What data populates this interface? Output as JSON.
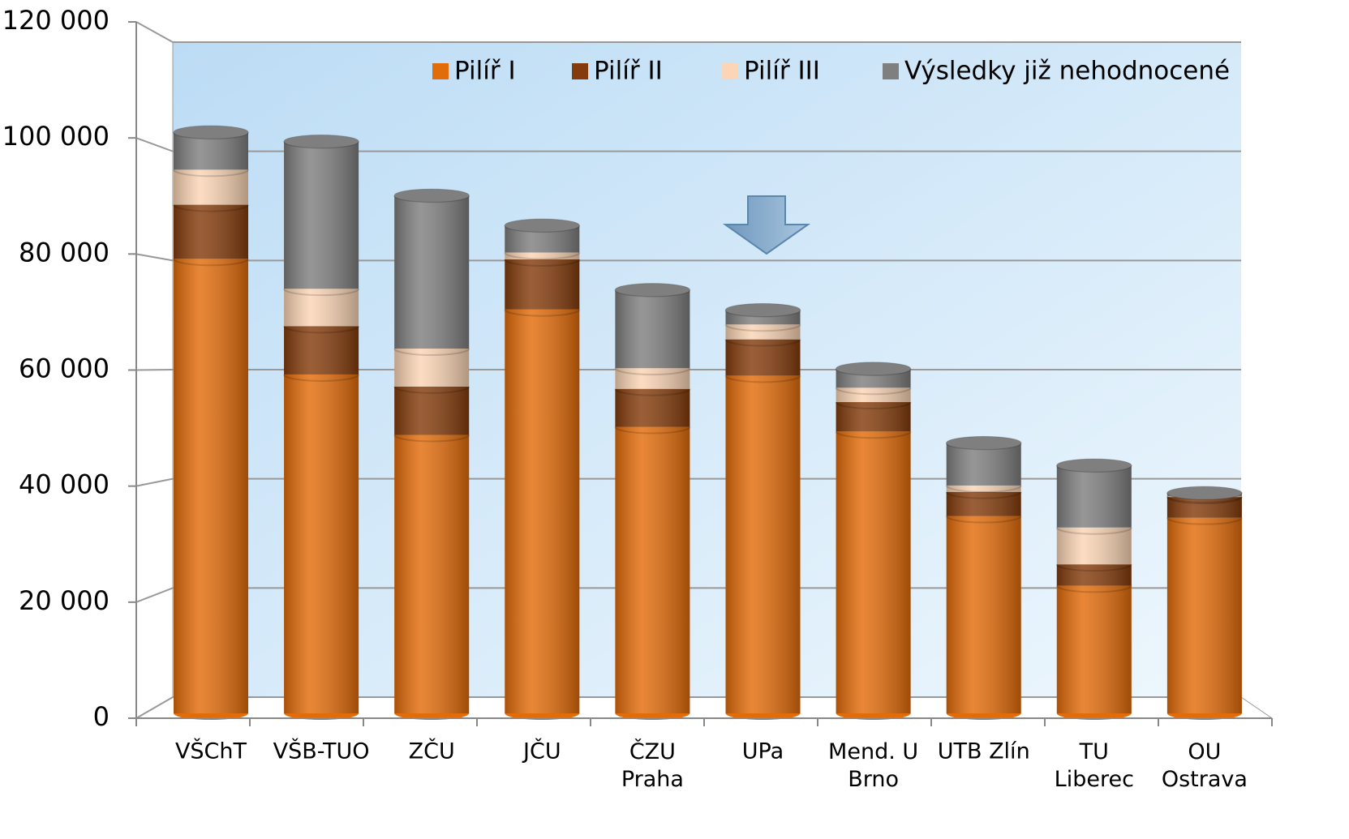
{
  "chart_data": {
    "type": "bar",
    "categories": [
      "VŠChT",
      "VŠB-TUO",
      "ZČU",
      "JČU",
      "ČZU Praha",
      "UPa",
      "Mend. U Brno",
      "UTB Zlín",
      "TU Liberec",
      "OU Ostrava"
    ],
    "series": [
      {
        "name": "Pilíř I",
        "color": "#e36c0a",
        "values": [
          79000,
          58900,
          48400,
          70200,
          49800,
          58700,
          49000,
          34300,
          22200,
          34000
        ]
      },
      {
        "name": "Pilíř II",
        "color": "#843c0c",
        "values": [
          9400,
          8400,
          8400,
          8700,
          6600,
          6300,
          5100,
          4200,
          3700,
          3600
        ]
      },
      {
        "name": "Pilíř III",
        "color": "#fbd5b5",
        "values": [
          6100,
          6500,
          6600,
          1200,
          3600,
          2600,
          2500,
          1100,
          6400,
          200
        ]
      },
      {
        "name": "Výsledky již nehodnocené",
        "color": "#7f7f7f",
        "values": [
          6500,
          25600,
          26600,
          4700,
          13600,
          2500,
          3300,
          7400,
          10800,
          500
        ]
      }
    ],
    "stacked": true,
    "ylim": [
      0,
      120000
    ],
    "yticks": [
      0,
      {
        "value": 20000,
        "label": "20 000"
      },
      {
        "value": 40000,
        "label": "40 000"
      },
      {
        "value": 60000,
        "label": "60 000"
      },
      {
        "value": 80000,
        "label": "80 000"
      },
      {
        "value": 100000,
        "label": "100 000"
      },
      {
        "value": 120000,
        "label": "120 000"
      }
    ],
    "grid": true,
    "legend": "top-right"
  }
}
